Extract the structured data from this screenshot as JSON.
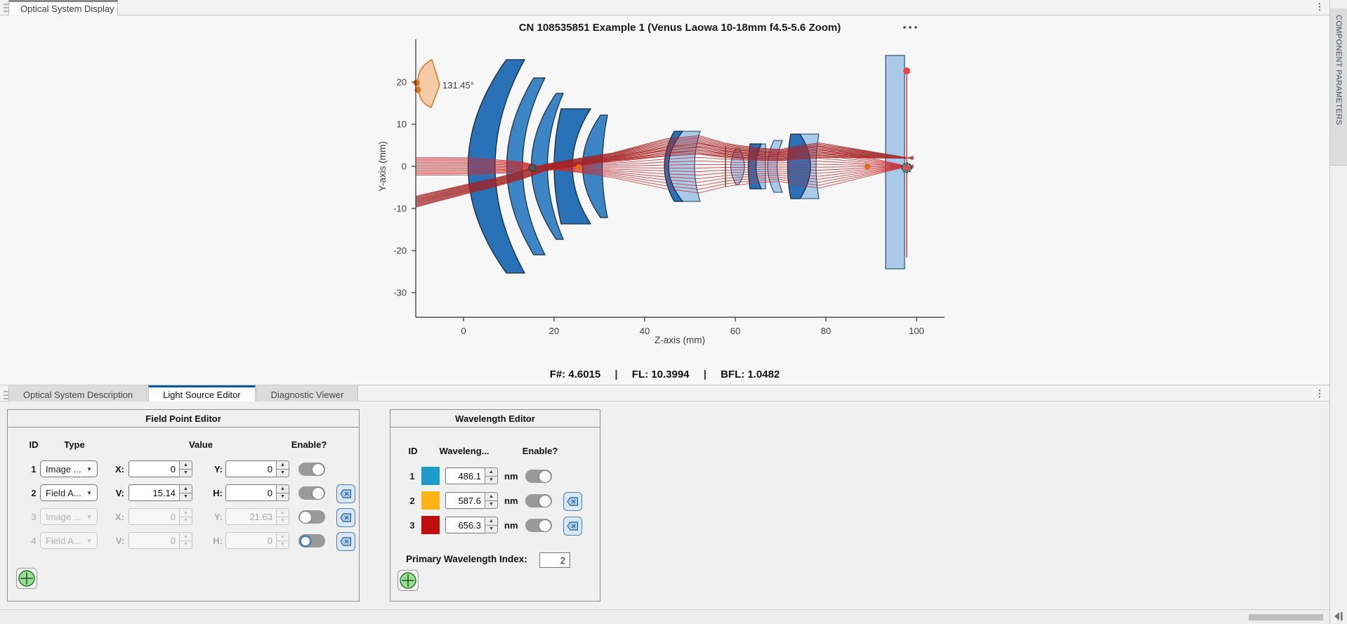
{
  "top_bar": {
    "tab_label": "Optical System Display"
  },
  "figure": {
    "title": "CN 108535851 Example 1 (Venus Laowa 10-18mm f4.5-5.6 Zoom)",
    "xlabel": "Z-axis (mm)",
    "ylabel": "Y-axis (mm)",
    "x_ticks": [
      0,
      20,
      40,
      60,
      80,
      100
    ],
    "y_ticks": [
      20,
      10,
      0,
      -10,
      -20,
      -30
    ],
    "field_angle_label": "131.45°",
    "status": {
      "f_label": "F#:",
      "f_value": "4.6015",
      "fl_label": "FL:",
      "fl_value": "10.3994",
      "bfl_label": "BFL:",
      "bfl_value": "1.0482",
      "sep": "|"
    },
    "colors": {
      "lens_dark": "#2a72b8",
      "lens_medium": "#3d86c6",
      "lens_light": "#a9c9e9",
      "fan_fill": "#f5c8a3",
      "fan_stroke": "#e2711d",
      "marker_orange": "#e56c10",
      "accent_red": "#f14040"
    },
    "ray_bundles": [
      {
        "name": "on-axis-bundle",
        "color": "#cc2b2b",
        "width": 0.9,
        "count": 15,
        "stations": [
          [
            -10.6,
            2.1,
            -2.1
          ],
          [
            1,
            2.05,
            -2.05
          ],
          [
            7,
            1.6,
            -1.7
          ],
          [
            13,
            1.0,
            -1.3
          ],
          [
            16.5,
            0.15,
            -0.35
          ],
          [
            20,
            -0.8,
            0.6
          ],
          [
            26,
            -1.5,
            1.1
          ],
          [
            33,
            -2.7,
            2.1
          ],
          [
            44.5,
            -5.3,
            4.5
          ],
          [
            52,
            -6.3,
            5.5
          ],
          [
            57.8,
            -4.8,
            4.3
          ],
          [
            60.5,
            -4.4,
            3.9
          ],
          [
            66,
            -3.8,
            3.4
          ],
          [
            70,
            -3.6,
            3.3
          ],
          [
            74,
            -4.5,
            4.1
          ],
          [
            78.5,
            -5.2,
            4.8
          ],
          [
            97.8,
            -0.06,
            0.06
          ],
          [
            99.3,
            0.4,
            -0.4
          ]
        ]
      },
      {
        "name": "off-axis-bundle",
        "color": "#a32222",
        "width": 0.9,
        "count": 15,
        "stations": [
          [
            -10.6,
            -7.1,
            -9.7
          ],
          [
            1,
            -4.2,
            -6.4
          ],
          [
            7,
            -2.8,
            -4.8
          ],
          [
            13,
            -1.1,
            -3.0
          ],
          [
            18,
            0.5,
            -1.1
          ],
          [
            26,
            2.0,
            0.3
          ],
          [
            33,
            3.2,
            1.3
          ],
          [
            44.5,
            6.5,
            2.5
          ],
          [
            52,
            7.3,
            2.9
          ],
          [
            57.8,
            5.5,
            2.1
          ],
          [
            60.5,
            5.0,
            1.8
          ],
          [
            66,
            4.3,
            1.5
          ],
          [
            70,
            4.0,
            1.4
          ],
          [
            74,
            4.9,
            1.8
          ],
          [
            78.5,
            5.6,
            2.1
          ],
          [
            97.8,
            2.1,
            1.9
          ],
          [
            99.3,
            1.6,
            2.4
          ]
        ]
      }
    ]
  },
  "bottom_tabs": {
    "tabs": [
      {
        "label": "Optical System Description",
        "active": false
      },
      {
        "label": "Light Source Editor",
        "active": true
      },
      {
        "label": "Diagnostic Viewer",
        "active": false
      }
    ]
  },
  "field_point_editor": {
    "title": "Field Point Editor",
    "columns": {
      "id": "ID",
      "type": "Type",
      "value": "Value",
      "enable": "Enable?"
    },
    "rows": [
      {
        "id": "1",
        "type": "Image ...",
        "label1": "X:",
        "value1": "0",
        "label2": "Y:",
        "value2": "0",
        "enabled": true,
        "on": true,
        "has_delete": false,
        "focus": false
      },
      {
        "id": "2",
        "type": "Field A...",
        "label1": "V:",
        "value1": "15.14",
        "label2": "H:",
        "value2": "0",
        "enabled": true,
        "on": true,
        "has_delete": true,
        "focus": false
      },
      {
        "id": "3",
        "type": "Image ...",
        "label1": "X:",
        "value1": "0",
        "label2": "Y:",
        "value2": "21.63",
        "enabled": false,
        "on": false,
        "has_delete": true,
        "focus": false
      },
      {
        "id": "4",
        "type": "Field A...",
        "label1": "V:",
        "value1": "0",
        "label2": "H:",
        "value2": "0",
        "enabled": false,
        "on": false,
        "has_delete": true,
        "focus": true
      }
    ]
  },
  "wavelength_editor": {
    "title": "Wavelength Editor",
    "columns": {
      "id": "ID",
      "wavelength": "Waveleng...",
      "enable": "Enable?"
    },
    "unit": "nm",
    "rows": [
      {
        "id": "1",
        "color": "#1d9bc9",
        "value": "486.1",
        "on": true,
        "has_delete": false
      },
      {
        "id": "2",
        "color": "#fdb515",
        "value": "587.6",
        "on": true,
        "has_delete": true
      },
      {
        "id": "3",
        "color": "#c00d0d",
        "value": "656.3",
        "on": true,
        "has_delete": true
      }
    ],
    "primary_label": "Primary Wavelength Index:",
    "primary_value": "2"
  },
  "right_panel": {
    "label": "COMPONENT PARAMETERS"
  }
}
